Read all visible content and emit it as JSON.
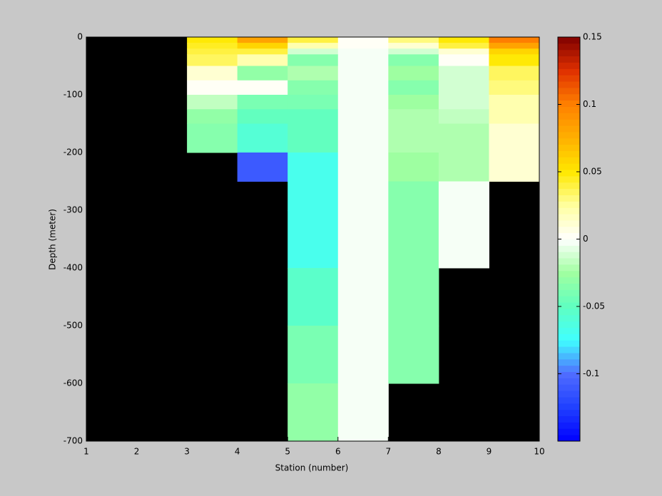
{
  "chart_data": {
    "type": "heatmap",
    "xlabel": "Station (number)",
    "ylabel": "Depth (meter)",
    "x_edges": [
      1,
      2,
      3,
      4,
      5,
      6,
      7,
      8,
      9,
      10
    ],
    "y_edges": [
      0,
      -10,
      -20,
      -30,
      -50,
      -75,
      -100,
      -125,
      -150,
      -200,
      -250,
      -300,
      -400,
      -500,
      -600,
      -700
    ],
    "values": [
      [
        null,
        null,
        0.05,
        0.08,
        0.04,
        0,
        0.03,
        0.05,
        0.1
      ],
      [
        null,
        null,
        0.045,
        0.06,
        0.02,
        0,
        0.01,
        0.04,
        0.08
      ],
      [
        null,
        null,
        0.04,
        0.04,
        -0.01,
        -0.002,
        -0.01,
        0.01,
        0.06
      ],
      [
        null,
        null,
        0.035,
        0.02,
        -0.035,
        -0.002,
        -0.035,
        0,
        0.05
      ],
      [
        null,
        null,
        0.01,
        -0.03,
        -0.02,
        -0.002,
        -0.025,
        -0.01,
        0.035
      ],
      [
        null,
        null,
        0.002,
        0,
        -0.035,
        -0.002,
        -0.035,
        -0.01,
        0.03
      ],
      [
        null,
        null,
        -0.015,
        -0.04,
        -0.04,
        -0.002,
        -0.025,
        -0.012,
        0.02
      ],
      [
        null,
        null,
        -0.03,
        -0.05,
        -0.05,
        -0.002,
        -0.02,
        -0.015,
        0.02
      ],
      [
        null,
        null,
        -0.035,
        -0.06,
        -0.05,
        -0.002,
        -0.02,
        -0.02,
        0.01
      ],
      [
        null,
        null,
        null,
        -0.11,
        -0.07,
        -0.002,
        -0.025,
        -0.02,
        0.01
      ],
      [
        null,
        null,
        null,
        null,
        -0.07,
        -0.002,
        -0.035,
        -0.003,
        null
      ],
      [
        null,
        null,
        null,
        null,
        -0.07,
        -0.002,
        -0.035,
        -0.003,
        null
      ],
      [
        null,
        null,
        null,
        null,
        -0.055,
        -0.002,
        -0.035,
        null,
        null
      ],
      [
        null,
        null,
        null,
        null,
        -0.04,
        -0.002,
        -0.035,
        null,
        null
      ],
      [
        null,
        null,
        null,
        null,
        -0.03,
        -0.002,
        null,
        null,
        null
      ]
    ],
    "nan_color": "#000000",
    "xlim": [
      1,
      10
    ],
    "ylim": [
      -700,
      0
    ],
    "xticks": [
      1,
      2,
      3,
      4,
      5,
      6,
      7,
      8,
      9,
      10
    ],
    "yticks": [
      0,
      -100,
      -200,
      -300,
      -400,
      -500,
      -600,
      -700
    ],
    "clim": [
      -0.15,
      0.15
    ],
    "cticks": [
      0.15,
      0.1,
      0.05,
      0,
      -0.05,
      -0.1
    ],
    "colormap": [
      "#0000ff",
      "#2040ff",
      "#4f6cff",
      "#40ffff",
      "#60ffc0",
      "#a0ffa0",
      "#ffffff",
      "#ffffa0",
      "#ffe800",
      "#ffb000",
      "#ff8000",
      "#e03000",
      "#800000"
    ],
    "colormap_levels": 64
  }
}
